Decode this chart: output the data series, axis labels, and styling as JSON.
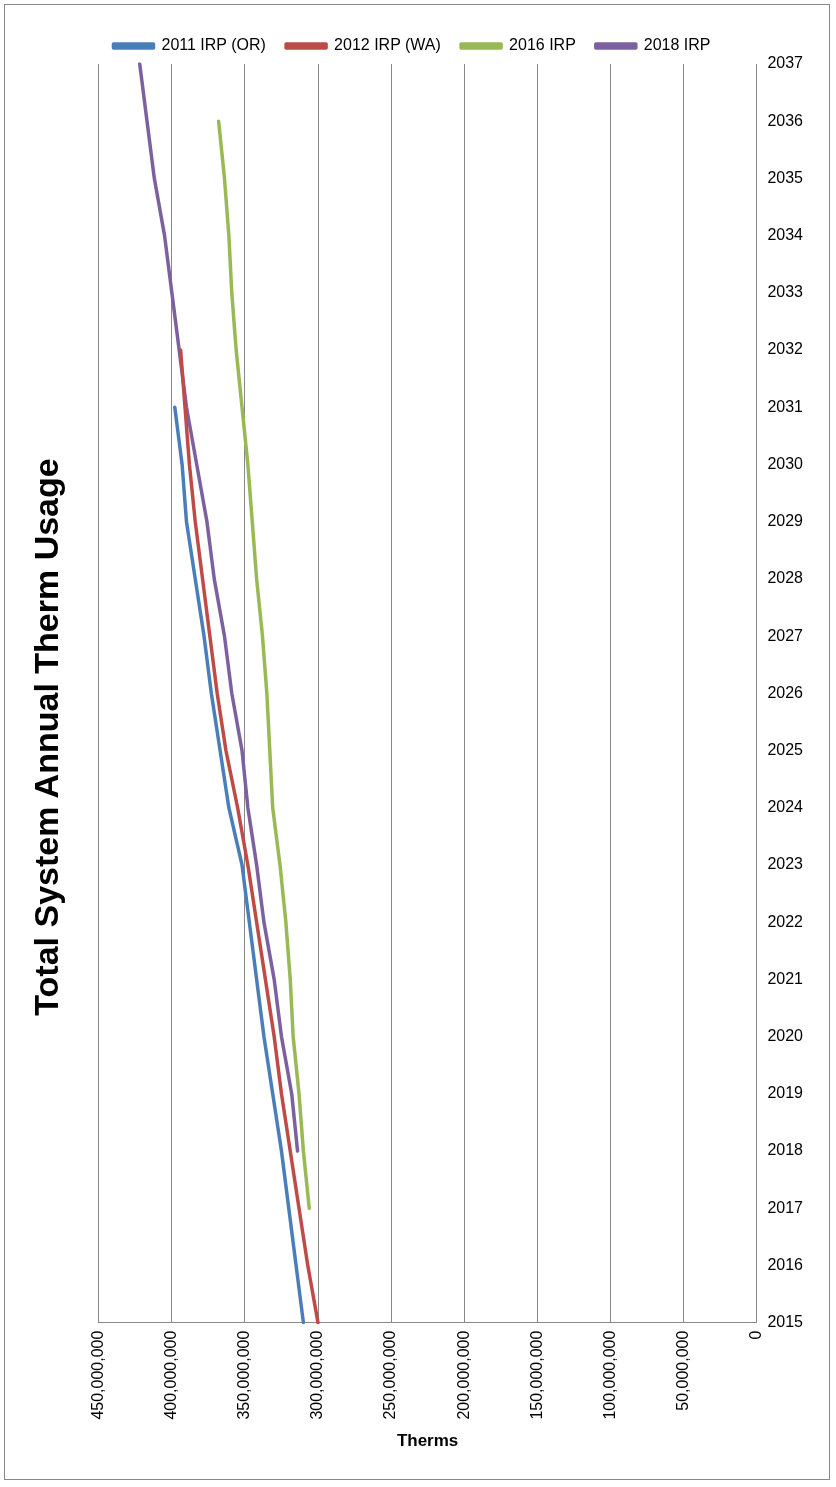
{
  "chart_data": {
    "type": "line",
    "title": "Total System Annual Therm Usage",
    "xlabel": "Therms",
    "orientation": "horizontal",
    "categories": [
      "2037",
      "2036",
      "2035",
      "2034",
      "2033",
      "2032",
      "2031",
      "2030",
      "2029",
      "2028",
      "2027",
      "2026",
      "2025",
      "2024",
      "2023",
      "2022",
      "2021",
      "2020",
      "2019",
      "2018",
      "2017",
      "2016",
      "2015"
    ],
    "series": [
      {
        "name": "2011 IRP (OR)",
        "color": "#4a7ebb",
        "values": [
          null,
          null,
          null,
          null,
          null,
          null,
          398000000,
          393000000,
          390000000,
          384000000,
          378000000,
          373000000,
          367000000,
          361000000,
          352000000,
          347000000,
          342000000,
          337000000,
          331000000,
          325000000,
          320000000,
          315000000,
          310000000
        ]
      },
      {
        "name": "2012 IRP (WA)",
        "color": "#be4b48",
        "values": [
          null,
          null,
          null,
          null,
          null,
          394000000,
          391000000,
          388000000,
          384000000,
          379000000,
          374000000,
          369000000,
          363000000,
          355000000,
          348000000,
          342000000,
          336000000,
          330000000,
          325000000,
          319000000,
          313000000,
          307000000,
          300000000
        ]
      },
      {
        "name": "2016 IRP",
        "color": "#98b954",
        "values": [
          null,
          368000000,
          364000000,
          361000000,
          359000000,
          356000000,
          352000000,
          348000000,
          345000000,
          342000000,
          338000000,
          335000000,
          333000000,
          331000000,
          326000000,
          322000000,
          319000000,
          317000000,
          313000000,
          310000000,
          306000000,
          null,
          null
        ]
      },
      {
        "name": "2018 IRP",
        "color": "#7d60a0",
        "values": [
          422000000,
          417000000,
          412000000,
          405000000,
          400000000,
          395000000,
          390000000,
          383000000,
          376000000,
          371000000,
          364000000,
          359000000,
          352000000,
          348000000,
          342000000,
          337000000,
          330000000,
          325000000,
          318000000,
          314000000,
          null,
          null,
          null
        ]
      }
    ],
    "xlim": [
      450000000,
      0
    ],
    "xticks": [
      {
        "value": 0,
        "label": "0"
      },
      {
        "value": 50000000,
        "label": "50,000,000"
      },
      {
        "value": 100000000,
        "label": "100,000,000"
      },
      {
        "value": 150000000,
        "label": "150,000,000"
      },
      {
        "value": 200000000,
        "label": "200,000,000"
      },
      {
        "value": 250000000,
        "label": "250,000,000"
      },
      {
        "value": 300000000,
        "label": "300,000,000"
      },
      {
        "value": 350000000,
        "label": "350,000,000"
      },
      {
        "value": 400000000,
        "label": "400,000,000"
      },
      {
        "value": 450000000,
        "label": "450,000,000"
      }
    ],
    "grid": "x",
    "legend": "top",
    "line_style": "solid"
  }
}
